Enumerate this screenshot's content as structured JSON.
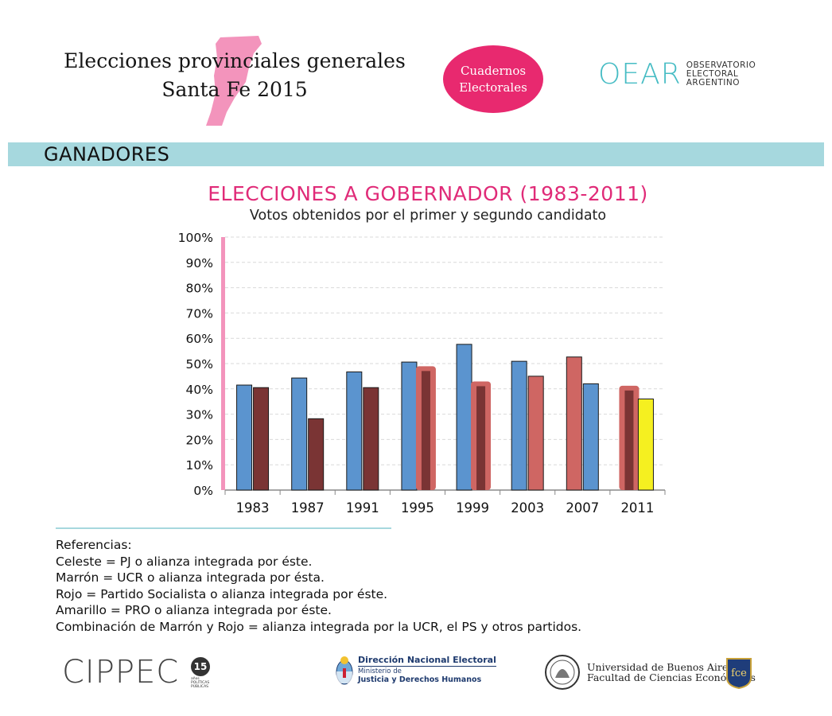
{
  "header": {
    "title_line1": "Elecciones provinciales generales",
    "title_line2": "Santa Fe 2015",
    "badge_line1": "Cuadernos",
    "badge_line2": "Electorales",
    "oear_mark": "OEAR",
    "oear_line1": "OBSERVATORIO",
    "oear_line2": "ELECTORAL",
    "oear_line3": "ARGENTINO"
  },
  "section": {
    "title": "GANADORES"
  },
  "references": {
    "heading": "Referencias:",
    "items": [
      "Celeste = PJ o alianza integrada por éste.",
      "Marrón = UCR o alianza integrada por ésta.",
      "Rojo = Partido Socialista o alianza integrada por éste.",
      "Amarillo = PRO o alianza integrada por éste.",
      "Combinación de Marrón y Rojo = alianza integrada por la UCR, el PS y otros partidos."
    ]
  },
  "footer": {
    "cippec": "CIPPEC",
    "cippec_badge": "15",
    "cippec_small1": "años",
    "cippec_small2": "POLÍTICAS",
    "cippec_small3": "PÚBLICAS",
    "dne_title": "Dirección Nacional Electoral",
    "dne_line2": "Ministerio de",
    "dne_line3": "Justicia y Derechos Humanos",
    "uba_line1": "Universidad de Buenos Aires",
    "uba_line2": "Facultad de Ciencias Económicas",
    "fce_text": "fce"
  },
  "colors": {
    "celeste": "#5b94cf",
    "marron": "#7a3434",
    "rojo": "#cf6663",
    "amarillo": "#f5f020",
    "accent_pink": "#e02b78",
    "band": "#a6d8de"
  },
  "chart_data": {
    "type": "bar",
    "title": "ELECCIONES A GOBERNADOR (1983-2011)",
    "subtitle": "Votos obtenidos por el primer y segundo candidato",
    "xlabel": "",
    "ylabel": "",
    "ylim": [
      0,
      100
    ],
    "yticks": [
      "0%",
      "10%",
      "20%",
      "30%",
      "40%",
      "50%",
      "60%",
      "70%",
      "80%",
      "90%",
      "100%"
    ],
    "categories": [
      "1983",
      "1987",
      "1991",
      "1995",
      "1999",
      "2003",
      "2007",
      "2011"
    ],
    "series": [
      {
        "name": "Primer candidato",
        "values": [
          41.5,
          44.3,
          46.7,
          50.6,
          57.6,
          50.9,
          52.6,
          40.3
        ],
        "parties": [
          "celeste",
          "celeste",
          "celeste",
          "celeste",
          "celeste",
          "celeste",
          "rojo",
          "marron+rojo"
        ]
      },
      {
        "name": "Segundo candidato",
        "values": [
          40.5,
          28.2,
          40.5,
          48.0,
          42.0,
          45.0,
          42.0,
          36.0
        ],
        "parties": [
          "marron",
          "marron",
          "marron",
          "marron+rojo",
          "marron+rojo",
          "rojo",
          "celeste",
          "amarillo"
        ]
      }
    ],
    "grid": true
  }
}
